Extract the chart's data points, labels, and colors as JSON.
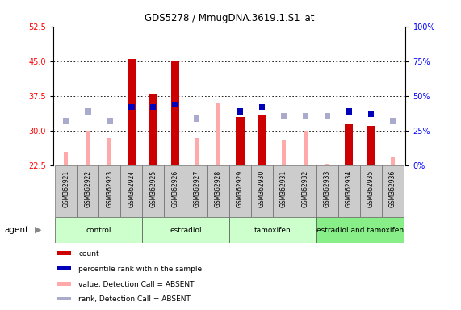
{
  "title": "GDS5278 / MmugDNA.3619.1.S1_at",
  "samples": [
    "GSM362921",
    "GSM362922",
    "GSM362923",
    "GSM362924",
    "GSM362925",
    "GSM362926",
    "GSM362927",
    "GSM362928",
    "GSM362929",
    "GSM362930",
    "GSM362931",
    "GSM362932",
    "GSM362933",
    "GSM362934",
    "GSM362935",
    "GSM362936"
  ],
  "group_colors": [
    "#ccffcc",
    "#ccffcc",
    "#ccffcc",
    "#88ee88"
  ],
  "group_labels": [
    "control",
    "estradiol",
    "tamoxifen",
    "estradiol and tamoxifen"
  ],
  "group_ranges": [
    [
      0,
      3
    ],
    [
      4,
      7
    ],
    [
      8,
      11
    ],
    [
      12,
      15
    ]
  ],
  "count_present": [
    null,
    null,
    null,
    45.5,
    38.0,
    45.0,
    null,
    null,
    33.0,
    33.5,
    null,
    null,
    null,
    31.5,
    31.0,
    null
  ],
  "count_absent": [
    25.5,
    30.0,
    28.5,
    null,
    null,
    null,
    28.5,
    36.0,
    null,
    null,
    28.0,
    30.0,
    23.0,
    null,
    null,
    24.5
  ],
  "rank_present": [
    null,
    null,
    null,
    34.5,
    34.5,
    35.0,
    null,
    null,
    33.5,
    34.5,
    null,
    null,
    null,
    33.5,
    33.0,
    null
  ],
  "rank_absent": [
    31.5,
    33.5,
    31.5,
    null,
    null,
    null,
    32.0,
    null,
    null,
    null,
    32.5,
    32.5,
    32.5,
    null,
    null,
    31.5
  ],
  "ylim": [
    22.5,
    52.5
  ],
  "yticks_left": [
    22.5,
    30.0,
    37.5,
    45.0,
    52.5
  ],
  "yticks_right": [
    0,
    25,
    50,
    75,
    100
  ],
  "bar_color_red": "#cc0000",
  "bar_color_blue": "#0000bb",
  "bar_color_pink": "#ffaaaa",
  "bar_color_lightblue": "#aaaacc",
  "legend_items": [
    [
      "#cc0000",
      "count"
    ],
    [
      "#0000bb",
      "percentile rank within the sample"
    ],
    [
      "#ffaaaa",
      "value, Detection Call = ABSENT"
    ],
    [
      "#aaaacc",
      "rank, Detection Call = ABSENT"
    ]
  ]
}
